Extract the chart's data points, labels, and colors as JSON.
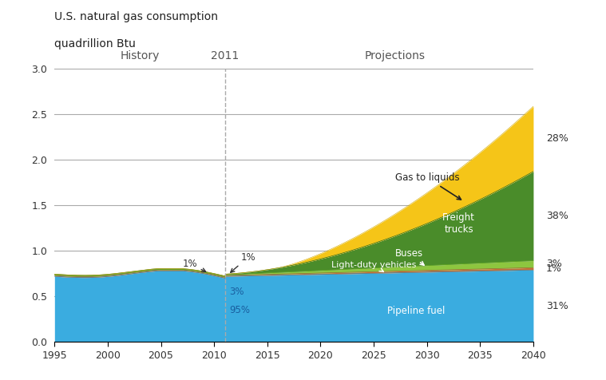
{
  "title_line1": "U.S. natural gas consumption",
  "title_line2": "quadrillion Btu",
  "xlim": [
    1995,
    2040
  ],
  "ylim": [
    0.0,
    3.0
  ],
  "yticks": [
    0.0,
    0.5,
    1.0,
    1.5,
    2.0,
    2.5,
    3.0
  ],
  "xticks": [
    1995,
    2000,
    2005,
    2010,
    2015,
    2020,
    2025,
    2030,
    2035,
    2040
  ],
  "divider_x": 2011,
  "colors": {
    "pipeline": "#3aace0",
    "ldv": "#c87137",
    "buses": "#8dc63f",
    "freight": "#4a8c2a",
    "gtl": "#f5c518",
    "background": "#ffffff",
    "grid": "#aaaaaa",
    "vline": "#aaaaaa"
  },
  "total_2040": 2.55,
  "pct_pipeline_2040": 0.31,
  "pct_ldv_2040": 0.01,
  "pct_buses_2040": 0.03,
  "pct_freight_2040": 0.38,
  "pct_gtl_2040": 0.28,
  "pct_pipeline_2011": 0.95,
  "pct_ldv_2011": 0.01,
  "pct_buses_2011": 0.03,
  "pct_freight_2011": 0.01
}
